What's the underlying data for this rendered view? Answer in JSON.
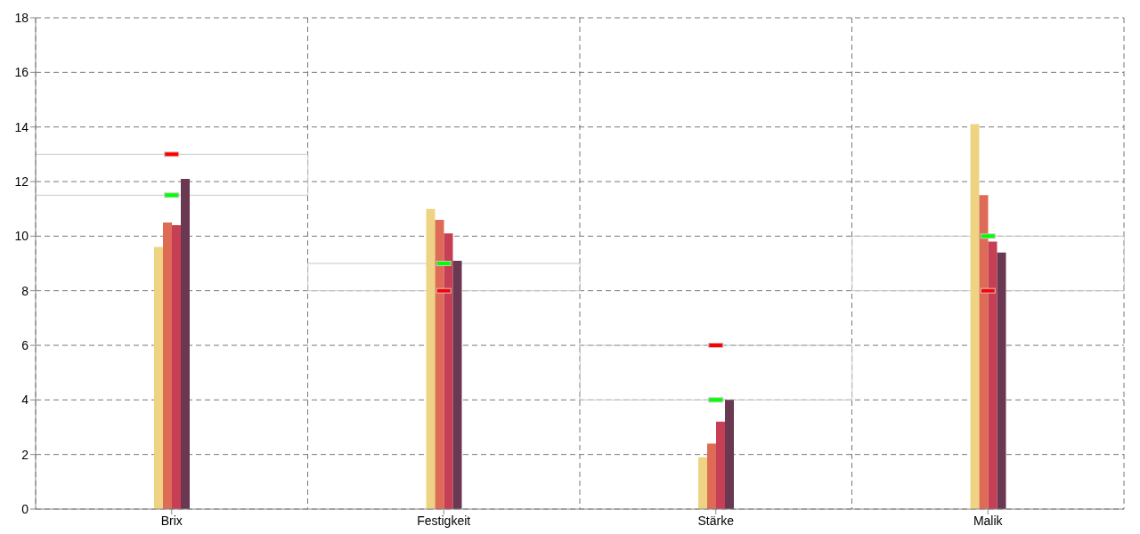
{
  "chart_data": {
    "type": "bar",
    "categories": [
      "Brix",
      "Festigkeit",
      "Stärke",
      "Malik"
    ],
    "series": [
      {
        "type": "bar",
        "color": "#c8c8c8",
        "base": [
          11.5,
          8,
          4,
          8
        ],
        "values": [
          1.5,
          1,
          2,
          2
        ]
      },
      {
        "color": "#edd382",
        "values": [
          9.6,
          11.0,
          1.9,
          14.1
        ]
      },
      {
        "color": "#dd6b55",
        "values": [
          10.5,
          10.6,
          2.4,
          11.5
        ]
      },
      {
        "color": "#c63f55",
        "values": [
          10.4,
          10.1,
          3.2,
          9.8
        ]
      },
      {
        "color": "#6a3850",
        "values": [
          12.1,
          9.1,
          4.0,
          9.4
        ]
      },
      {
        "type": "scatter",
        "color": "#00ff00",
        "values": [
          11.5,
          9,
          4,
          10
        ]
      },
      {
        "type": "scatter",
        "color": "#ff0000",
        "values": [
          13,
          8,
          6,
          8
        ]
      }
    ],
    "ylim": [
      0,
      18
    ],
    "yticks": [
      0,
      2,
      4,
      6,
      8,
      10,
      12,
      14,
      16,
      18
    ],
    "grid": true,
    "legend": false
  }
}
